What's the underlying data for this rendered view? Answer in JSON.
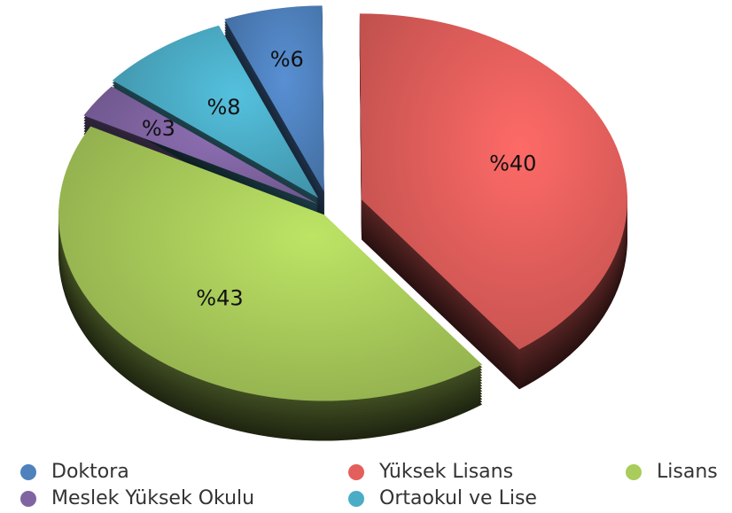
{
  "chart_data": {
    "type": "pie",
    "categories": [
      "Doktora",
      "Yüksek Lisans",
      "Lisans",
      "Meslek Yüksek Okulu",
      "Ortaokul ve Lise"
    ],
    "values": [
      6,
      40,
      43,
      3,
      8
    ],
    "value_labels": [
      "%6",
      "%40",
      "%43",
      "%3",
      "%8"
    ],
    "colors": [
      "#4f81bd",
      "#e35f5c",
      "#a9cc5a",
      "#8064a2",
      "#4bacc6"
    ],
    "legend": "bottom"
  }
}
